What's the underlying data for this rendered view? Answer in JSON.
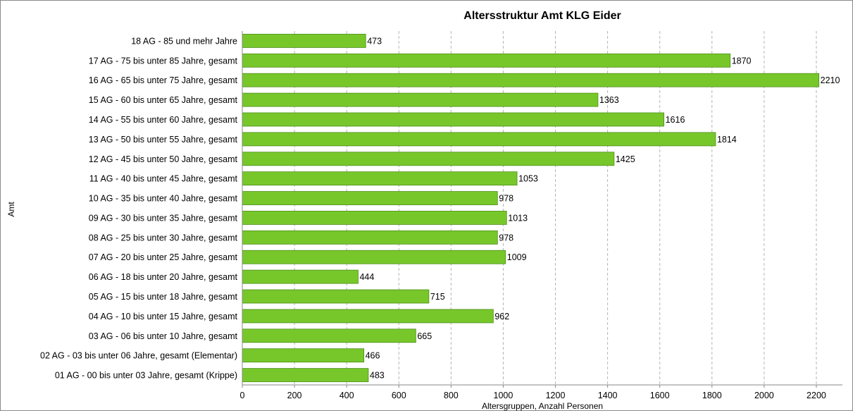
{
  "chart_data": {
    "type": "bar",
    "orientation": "horizontal",
    "title": "Altersstruktur Amt KLG Eider",
    "xlabel": "Altersgruppen, Anzahl Personen",
    "ylabel": "Amt",
    "xlim": [
      0,
      2300
    ],
    "xticks": [
      0,
      200,
      400,
      600,
      800,
      1000,
      1200,
      1400,
      1600,
      1800,
      2000,
      2200
    ],
    "grid": "vertical dashed",
    "bar_color": "#77c72b",
    "bar_edge_color": "#4f8f1a",
    "categories": [
      "18 AG - 85 und mehr Jahre",
      "17 AG - 75 bis unter 85 Jahre, gesamt",
      "16 AG - 65 bis unter 75 Jahre, gesamt",
      "15 AG - 60 bis unter 65 Jahre, gesamt",
      "14 AG - 55 bis unter 60 Jahre, gesamt",
      "13 AG - 50 bis unter 55 Jahre, gesamt",
      "12 AG - 45 bis unter 50 Jahre, gesamt",
      "11 AG - 40 bis unter 45 Jahre, gesamt",
      "10 AG - 35 bis unter 40 Jahre, gesamt",
      "09 AG - 30 bis unter 35 Jahre, gesamt",
      "08 AG - 25 bis unter 30 Jahre, gesamt",
      "07 AG - 20 bis unter 25 Jahre, gesamt",
      "06 AG - 18 bis unter 20 Jahre, gesamt",
      "05 AG - 15 bis unter 18 Jahre, gesamt",
      "04 AG - 10 bis unter 15 Jahre, gesamt",
      "03 AG - 06 bis unter 10 Jahre, gesamt",
      "02 AG - 03 bis unter 06 Jahre, gesamt (Elementar)",
      "01 AG - 00 bis unter 03 Jahre, gesamt (Krippe)"
    ],
    "values": [
      473,
      1870,
      2210,
      1363,
      1616,
      1814,
      1425,
      1053,
      978,
      1013,
      978,
      1009,
      444,
      715,
      962,
      665,
      466,
      483
    ]
  }
}
